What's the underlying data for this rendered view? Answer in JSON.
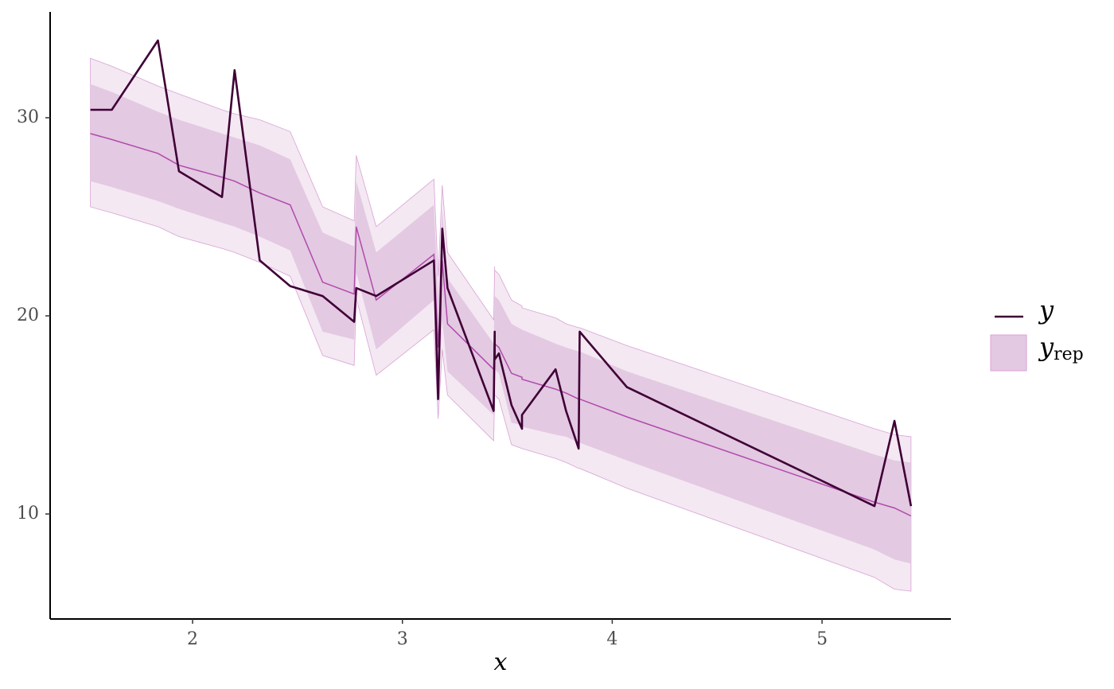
{
  "chart_data": {
    "type": "interval",
    "xlabel": "x",
    "xlim": [
      1.321,
      5.614
    ],
    "ylim": [
      4.7,
      35.34
    ],
    "xticks": [
      2,
      3,
      4,
      5
    ],
    "yticks": [
      10,
      20,
      30
    ],
    "legend": "right",
    "x": [
      1.513,
      1.615,
      1.835,
      1.935,
      2.14,
      2.2,
      2.32,
      2.465,
      2.62,
      2.77,
      2.78,
      2.875,
      3.15,
      3.17,
      3.19,
      3.215,
      3.435,
      3.44,
      3.44,
      3.46,
      3.52,
      3.57,
      3.57,
      3.73,
      3.78,
      3.84,
      3.845,
      4.07,
      5.25,
      5.345,
      5.424
    ],
    "series": [
      {
        "name": "y",
        "color": "#3f0035",
        "values": [
          30.4,
          30.4,
          33.9,
          27.3,
          26.0,
          32.4,
          22.8,
          21.5,
          21.0,
          19.7,
          21.4,
          21.0,
          22.8,
          15.8,
          24.4,
          21.4,
          15.2,
          19.2,
          17.8,
          18.1,
          15.5,
          14.3,
          15.0,
          17.3,
          15.2,
          13.3,
          19.2,
          16.4,
          10.4,
          14.7,
          10.4
        ]
      }
    ],
    "band": {
      "name": "y",
      "subscript": "rep",
      "median_color": "#b14aac",
      "inner_fill": "#e3c9e2",
      "outer_fill": "#f4e8f3",
      "edge_color": "#d8a2d5",
      "median": [
        29.2,
        28.9,
        28.2,
        27.6,
        27.0,
        26.8,
        26.2,
        25.6,
        21.7,
        21.1,
        24.5,
        20.8,
        23.1,
        18.4,
        22.8,
        19.6,
        17.3,
        19.0,
        18.6,
        18.4,
        17.1,
        16.9,
        16.8,
        16.3,
        16.1,
        15.8,
        15.8,
        14.9,
        10.6,
        10.3,
        9.9
      ],
      "inner_lower": [
        26.8,
        26.5,
        25.8,
        25.4,
        24.7,
        24.5,
        24.0,
        23.3,
        19.2,
        18.8,
        22.2,
        18.3,
        20.8,
        16.0,
        19.8,
        17.2,
        15.0,
        17.6,
        17.3,
        17.1,
        14.6,
        14.5,
        14.4,
        14.0,
        13.9,
        13.6,
        13.6,
        12.7,
        8.2,
        7.7,
        7.5
      ],
      "inner_upper": [
        31.7,
        31.3,
        30.3,
        29.9,
        29.2,
        29.0,
        28.6,
        27.9,
        24.2,
        23.5,
        26.8,
        23.2,
        25.6,
        20.8,
        25.4,
        21.9,
        18.6,
        21.2,
        21.0,
        20.8,
        19.6,
        19.3,
        19.3,
        18.6,
        18.4,
        18.2,
        18.2,
        17.2,
        13.0,
        12.7,
        12.6
      ],
      "outer_lower": [
        25.5,
        25.2,
        24.5,
        24.0,
        23.4,
        23.2,
        22.7,
        22.0,
        18.0,
        17.5,
        20.9,
        17.0,
        19.3,
        14.8,
        18.3,
        16.0,
        13.7,
        16.2,
        16.0,
        15.8,
        13.5,
        13.3,
        13.3,
        12.8,
        12.6,
        12.3,
        12.3,
        11.3,
        6.8,
        6.2,
        6.1
      ],
      "outer_upper": [
        33.0,
        32.6,
        31.6,
        31.2,
        30.4,
        30.2,
        29.9,
        29.3,
        25.5,
        24.8,
        28.1,
        24.5,
        26.9,
        22.0,
        26.6,
        23.2,
        19.8,
        22.5,
        22.3,
        22.1,
        20.8,
        20.5,
        20.4,
        19.9,
        19.6,
        19.4,
        19.4,
        18.5,
        14.3,
        14.0,
        13.9
      ]
    }
  }
}
